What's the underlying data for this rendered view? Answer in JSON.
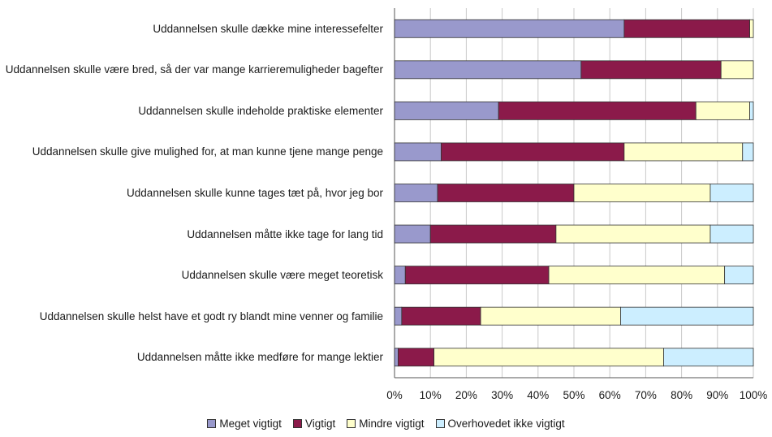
{
  "chart_data": {
    "type": "bar",
    "orientation": "horizontal",
    "stacked": true,
    "normalized": true,
    "categories": [
      "Uddannelsen skulle dække mine interessefelter",
      "Uddannelsen skulle være bred, så der var mange karrieremuligheder bagefter",
      "Uddannelsen skulle indeholde praktiske elementer",
      "Uddannelsen skulle give mulighed for, at man kunne tjene mange penge",
      "Uddannelsen skulle kunne tages tæt på, hvor jeg bor",
      "Uddannelsen måtte ikke tage for lang tid",
      "Uddannelsen skulle være meget teoretisk",
      "Uddannelsen skulle helst have et godt ry blandt mine venner og familie",
      "Uddannelsen måtte ikke medføre for mange lektier"
    ],
    "series": [
      {
        "name": "Meget vigtigt",
        "color": "#9999cc",
        "values": [
          64,
          52,
          29,
          13,
          12,
          10,
          3,
          2,
          1
        ]
      },
      {
        "name": "Vigtigt",
        "color": "#8b1a4a",
        "values": [
          35,
          39,
          55,
          51,
          38,
          35,
          40,
          22,
          10
        ]
      },
      {
        "name": "Mindre vigtigt",
        "color": "#ffffcc",
        "values": [
          1,
          9,
          15,
          33,
          38,
          43,
          49,
          39,
          64
        ]
      },
      {
        "name": "Overhovedet ikke vigtigt",
        "color": "#cceeff",
        "values": [
          0,
          0,
          1,
          3,
          12,
          12,
          8,
          37,
          25
        ]
      }
    ],
    "xlim": [
      0,
      100
    ],
    "xticks": [
      "0%",
      "10%",
      "20%",
      "30%",
      "40%",
      "50%",
      "60%",
      "70%",
      "80%",
      "90%",
      "100%"
    ],
    "title": "",
    "xlabel": "",
    "ylabel": "",
    "legend_position": "bottom",
    "grid": "vertical"
  }
}
